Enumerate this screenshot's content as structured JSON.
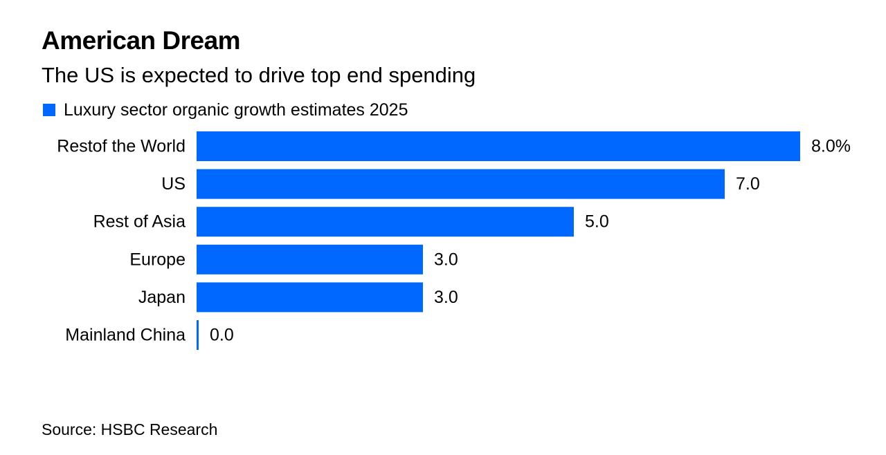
{
  "title": "American Dream",
  "subtitle": "The US is expected to drive top end spending",
  "source": "Source: HSBC Research",
  "colors": {
    "bar": "#0068ff",
    "text": "#000000",
    "background": "#ffffff"
  },
  "chart_data": {
    "type": "bar",
    "orientation": "horizontal",
    "categories": [
      "Restof the World",
      "US",
      "Rest of Asia",
      "Europe",
      "Japan",
      "Mainland China"
    ],
    "series": [
      {
        "name": "Luxury sector organic growth estimates 2025",
        "values": [
          8.0,
          7.0,
          5.0,
          3.0,
          3.0,
          0.0
        ],
        "value_labels": [
          "8.0%",
          "7.0",
          "5.0",
          "3.0",
          "3.0",
          "0.0"
        ]
      }
    ],
    "xlim": [
      0,
      8
    ],
    "unit": "%",
    "grid": false,
    "legend_position": "top-left"
  }
}
